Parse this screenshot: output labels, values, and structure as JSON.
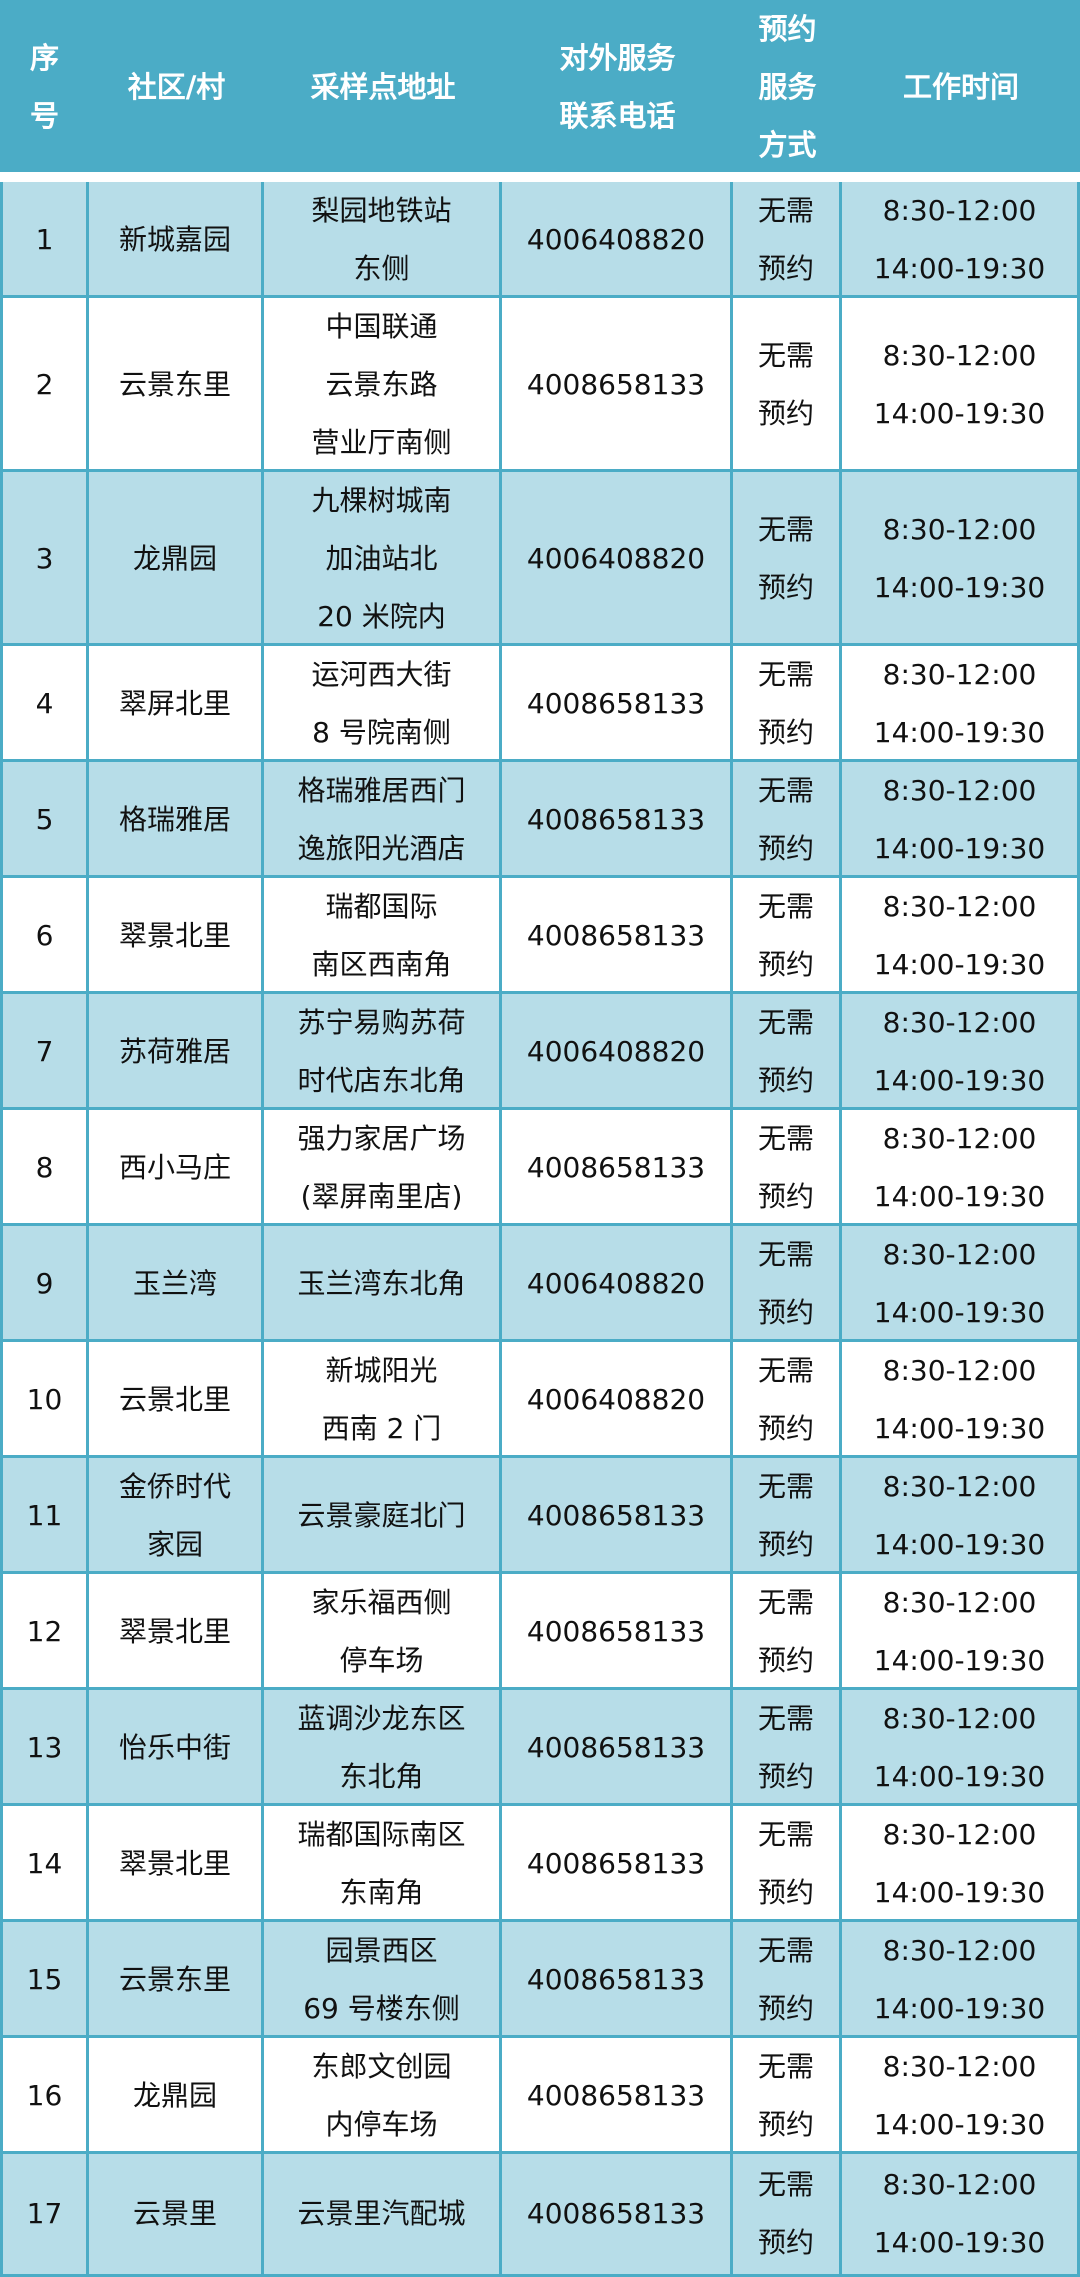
{
  "colors": {
    "header_bg": "#4BACC6",
    "odd_row_bg": "#B7DDE8",
    "border": "#4BACC6"
  },
  "headers": [
    "序\n号",
    "社区/村",
    "采样点地址",
    "对外服务\n联系电话",
    "预约\n服务\n方式",
    "工作时间"
  ],
  "rows": [
    [
      "1",
      "新城嘉园",
      "梨园地铁站\n东侧",
      "4006408820",
      "无需\n预约",
      "8:30-12:00\n14:00-19:30"
    ],
    [
      "2",
      "云景东里",
      "中国联通\n云景东路\n营业厅南侧",
      "4008658133",
      "无需\n预约",
      "8:30-12:00\n14:00-19:30"
    ],
    [
      "3",
      "龙鼎园",
      "九棵树城南\n加油站北\n20 米院内",
      "4006408820",
      "无需\n预约",
      "8:30-12:00\n14:00-19:30"
    ],
    [
      "4",
      "翠屏北里",
      "运河西大街\n8 号院南侧",
      "4008658133",
      "无需\n预约",
      "8:30-12:00\n14:00-19:30"
    ],
    [
      "5",
      "格瑞雅居",
      "格瑞雅居西门\n逸旅阳光酒店",
      "4008658133",
      "无需\n预约",
      "8:30-12:00\n14:00-19:30"
    ],
    [
      "6",
      "翠景北里",
      "瑞都国际\n南区西南角",
      "4008658133",
      "无需\n预约",
      "8:30-12:00\n14:00-19:30"
    ],
    [
      "7",
      "苏荷雅居",
      "苏宁易购苏荷\n时代店东北角",
      "4006408820",
      "无需\n预约",
      "8:30-12:00\n14:00-19:30"
    ],
    [
      "8",
      "西小马庄",
      "强力家居广场\n(翠屏南里店)",
      "4008658133",
      "无需\n预约",
      "8:30-12:00\n14:00-19:30"
    ],
    [
      "9",
      "玉兰湾",
      "玉兰湾东北角",
      "4006408820",
      "无需\n预约",
      "8:30-12:00\n14:00-19:30"
    ],
    [
      "10",
      "云景北里",
      "新城阳光\n西南 2 门",
      "4006408820",
      "无需\n预约",
      "8:30-12:00\n14:00-19:30"
    ],
    [
      "11",
      "金侨时代\n家园",
      "云景豪庭北门",
      "4008658133",
      "无需\n预约",
      "8:30-12:00\n14:00-19:30"
    ],
    [
      "12",
      "翠景北里",
      "家乐福西侧\n停车场",
      "4008658133",
      "无需\n预约",
      "8:30-12:00\n14:00-19:30"
    ],
    [
      "13",
      "怡乐中街",
      "蓝调沙龙东区\n东北角",
      "4008658133",
      "无需\n预约",
      "8:30-12:00\n14:00-19:30"
    ],
    [
      "14",
      "翠景北里",
      "瑞都国际南区\n东南角",
      "4008658133",
      "无需\n预约",
      "8:30-12:00\n14:00-19:30"
    ],
    [
      "15",
      "云景东里",
      "园景西区\n69 号楼东侧",
      "4008658133",
      "无需\n预约",
      "8:30-12:00\n14:00-19:30"
    ],
    [
      "16",
      "龙鼎园",
      "东郎文创园\n内停车场",
      "4008658133",
      "无需\n预约",
      "8:30-12:00\n14:00-19:30"
    ],
    [
      "17",
      "云景里",
      "云景里汽配城",
      "4008658133",
      "无需\n预约",
      "8:30-12:00\n14:00-19:30"
    ]
  ]
}
